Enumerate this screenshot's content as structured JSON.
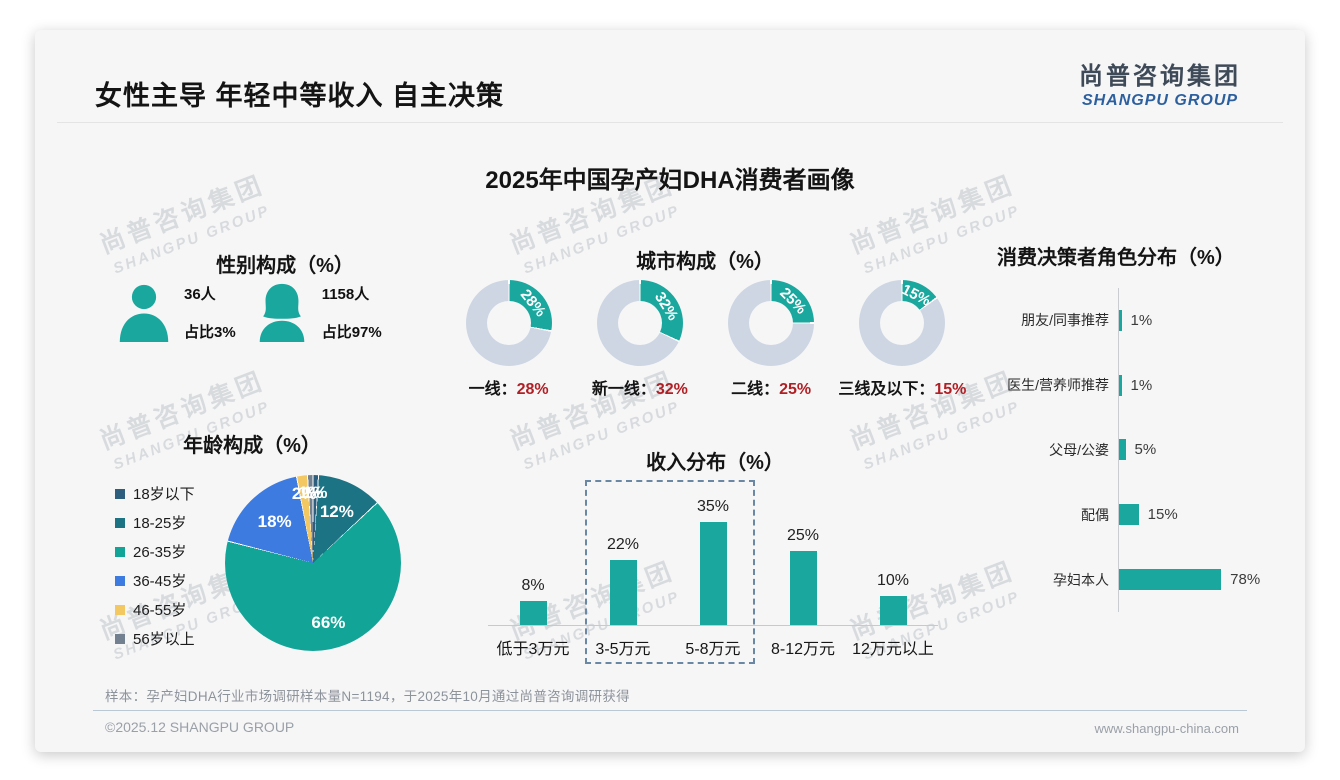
{
  "slide": {
    "title": "女性主导 年轻中等收入 自主决策",
    "logo": {
      "cn": "尚普咨询集团",
      "en": "SHANGPU GROUP"
    },
    "main_heading": "2025年中国孕产妇DHA消费者画像",
    "watermark": {
      "line1": "尚普咨询集团",
      "line2": "SHANGPU GROUP"
    },
    "footer": {
      "note": "样本：孕产妇DHA行业市场调研样本量N=1194，于2025年10月通过尚普咨询调研获得",
      "copyright": "©2025.12 SHANGPU GROUP",
      "website": "www.shangpu-china.com"
    }
  },
  "colors": {
    "teal": "#19a79e",
    "donut_rest": "#cdd6e2",
    "value_red": "#b01f24",
    "dashed_box": "#6a87a3",
    "pie_palette": [
      "#2e5e7e",
      "#1b7384",
      "#12a496",
      "#3d7be0",
      "#f3c862",
      "#72808f"
    ]
  },
  "chart_data": [
    {
      "id": "gender",
      "type": "pictogram",
      "title": "性别构成（%）",
      "items": [
        {
          "gender": "male",
          "count": "36人",
          "share": "占比3%"
        },
        {
          "gender": "female",
          "count": "1158人",
          "share": "占比97%"
        }
      ]
    },
    {
      "id": "city",
      "type": "pie",
      "subtype": "donut-set",
      "title": "城市构成（%）",
      "unit": "%",
      "items": [
        {
          "label": "一线",
          "value": 28
        },
        {
          "label": "新一线",
          "value": 32
        },
        {
          "label": "二线",
          "value": 25
        },
        {
          "label": "三线及以下",
          "value": 15
        }
      ]
    },
    {
      "id": "age",
      "type": "pie",
      "title": "年龄构成（%）",
      "categories": [
        "18岁以下",
        "18-25岁",
        "26-35岁",
        "36-45岁",
        "46-55岁",
        "56岁以上"
      ],
      "values": [
        1,
        12,
        66,
        18,
        2,
        1
      ],
      "legend_position": "left",
      "start_angle": "top",
      "direction": "clockwise"
    },
    {
      "id": "income",
      "type": "bar",
      "title": "收入分布（%）",
      "categories": [
        "低于3万元",
        "3-5万元",
        "5-8万元",
        "8-12万元",
        "12万元以上"
      ],
      "values": [
        8,
        22,
        35,
        25,
        10
      ],
      "highlight": {
        "from": "3-5万元",
        "to": "5-8万元"
      }
    },
    {
      "id": "decision",
      "type": "bar",
      "subtype": "horizontal",
      "title": "消费决策者角色分布（%）",
      "categories": [
        "朋友/同事推荐",
        "医生/营养师推荐",
        "父母/公婆",
        "配偶",
        "孕妇本人"
      ],
      "values": [
        1,
        1,
        5,
        15,
        78
      ]
    }
  ]
}
